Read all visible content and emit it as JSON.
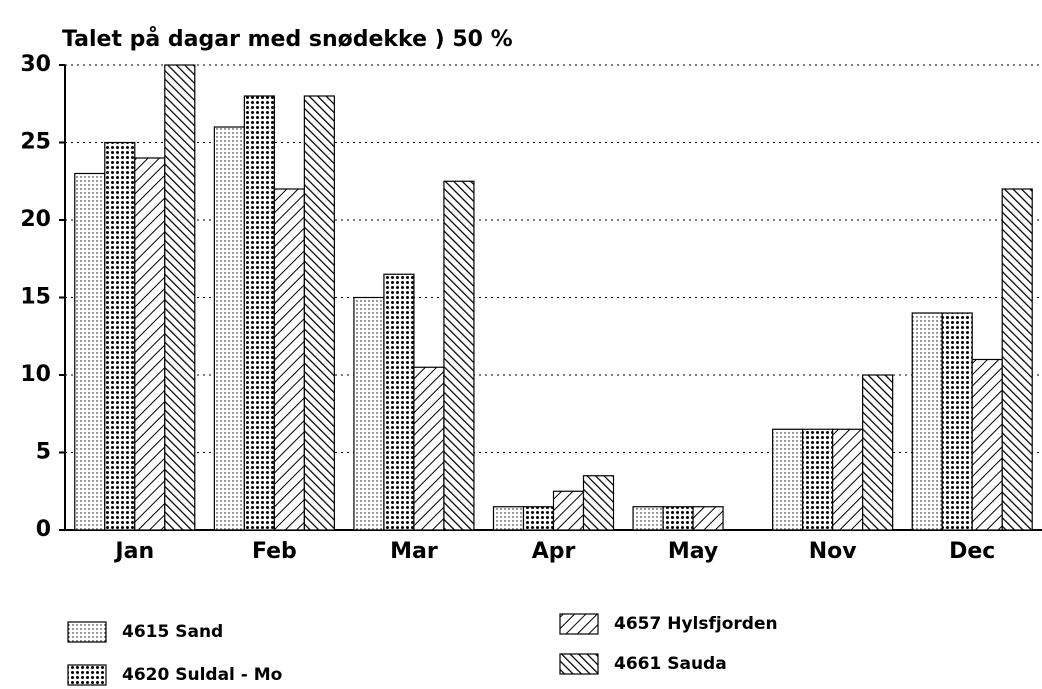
{
  "chart_data": {
    "type": "bar",
    "title": "Talet på dagar med snødekke ) 50 %",
    "categories": [
      "Jan",
      "Feb",
      "Mar",
      "Apr",
      "May",
      "Nov",
      "Dec"
    ],
    "series": [
      {
        "name": "4615 Sand",
        "color": "#000000",
        "pattern": "fine-dots",
        "values": [
          23,
          26,
          15,
          1.5,
          1.5,
          6.5,
          14
        ]
      },
      {
        "name": "4620 Suldal - Mo",
        "color": "#000000",
        "pattern": "coarse-dots",
        "values": [
          25,
          28,
          16.5,
          1.5,
          1.5,
          6.5,
          14
        ]
      },
      {
        "name": "4657 Hylsfjorden",
        "color": "#000000",
        "pattern": "forward-hatch",
        "values": [
          24,
          22,
          10.5,
          2.5,
          1.5,
          6.5,
          11
        ]
      },
      {
        "name": "4661 Sauda",
        "color": "#000000",
        "pattern": "back-hatch",
        "values": [
          30,
          28,
          22.5,
          3.5,
          0,
          10,
          22
        ]
      }
    ],
    "ylim": [
      0,
      30
    ],
    "yticks": [
      0,
      5,
      10,
      15,
      20,
      25,
      30
    ],
    "grid": true
  }
}
